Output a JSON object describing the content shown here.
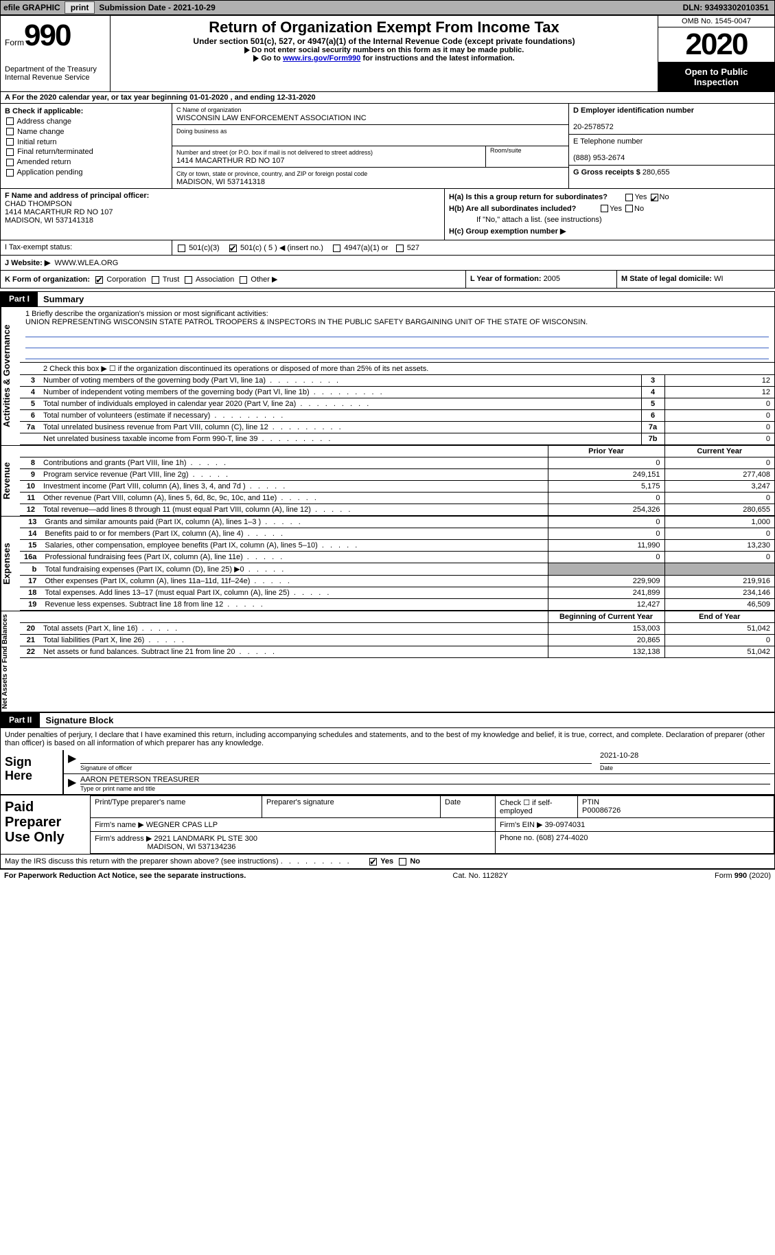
{
  "topbar": {
    "efile": "efile GRAPHIC",
    "print": "print",
    "subdate_label": "Submission Date - ",
    "subdate": "2021-10-29",
    "dln_label": "DLN: ",
    "dln": "93493302010351"
  },
  "header": {
    "form_prefix": "Form",
    "form_no": "990",
    "dept1": "Department of the Treasury",
    "dept2": "Internal Revenue Service",
    "title": "Return of Organization Exempt From Income Tax",
    "subtitle": "Under section 501(c), 527, or 4947(a)(1) of the Internal Revenue Code (except private foundations)",
    "note1": "Do not enter social security numbers on this form as it may be made public.",
    "note2_pre": "Go to ",
    "note2_link": "www.irs.gov/Form990",
    "note2_post": " for instructions and the latest information.",
    "omb": "OMB No. 1545-0047",
    "year": "2020",
    "inspection1": "Open to Public",
    "inspection2": "Inspection"
  },
  "period": {
    "text_pre": "For the 2020 calendar year, or tax year beginning ",
    "begin": "01-01-2020",
    "text_mid": " , and ending ",
    "end": "12-31-2020"
  },
  "colB": {
    "hdr": "B Check if applicable:",
    "opts": [
      "Address change",
      "Name change",
      "Initial return",
      "Final return/terminated",
      "Amended return",
      "Application pending"
    ]
  },
  "colC": {
    "name_lbl": "C Name of organization",
    "name": "WISCONSIN LAW ENFORCEMENT ASSOCIATION INC",
    "dba_lbl": "Doing business as",
    "dba": "",
    "addr_lbl": "Number and street (or P.O. box if mail is not delivered to street address)",
    "room_lbl": "Room/suite",
    "addr": "1414 MACARTHUR RD NO 107",
    "city_lbl": "City or town, state or province, country, and ZIP or foreign postal code",
    "city": "MADISON, WI  537141318"
  },
  "colDE": {
    "d_lbl": "D Employer identification number",
    "d_val": "20-2578572",
    "e_lbl": "E Telephone number",
    "e_val": "(888) 953-2674",
    "g_lbl": "G Gross receipts $ ",
    "g_val": "280,655"
  },
  "colF": {
    "lbl": "F Name and address of principal officer:",
    "name": "CHAD THOMPSON",
    "addr1": "1414 MACARTHUR RD NO 107",
    "addr2": "MADISON, WI  537141318"
  },
  "colH": {
    "ha": "H(a)  Is this a group return for subordinates?",
    "hb": "H(b)  Are all subordinates included?",
    "hb_note": "If \"No,\" attach a list. (see instructions)",
    "hc": "H(c)  Group exemption number ▶",
    "yes": "Yes",
    "no": "No"
  },
  "statusI": {
    "lbl": "I   Tax-exempt status:",
    "o1": "501(c)(3)",
    "o2_pre": "501(c) ( ",
    "o2_num": "5",
    "o2_post": " ) ◀ (insert no.)",
    "o3": "4947(a)(1) or",
    "o4": "527"
  },
  "statusJ": {
    "lbl": "J   Website: ▶",
    "val": "WWW.WLEA.ORG"
  },
  "rowK": {
    "lbl": "K Form of organization:",
    "o1": "Corporation",
    "o2": "Trust",
    "o3": "Association",
    "o4": "Other ▶"
  },
  "rowL": {
    "lbl": "L Year of formation: ",
    "val": "2005"
  },
  "rowM": {
    "lbl": "M State of legal domicile: ",
    "val": "WI"
  },
  "part1": {
    "tab": "Part I",
    "title": "Summary",
    "vlabels": {
      "gov": "Activities & Governance",
      "rev": "Revenue",
      "exp": "Expenses",
      "net": "Net Assets or Fund Balances"
    },
    "line1_lbl": "1  Briefly describe the organization's mission or most significant activities:",
    "line1_val": "UNION REPRESENTING WISCONSIN STATE PATROL TROOPERS & INSPECTORS IN THE PUBLIC SAFETY BARGAINING UNIT OF THE STATE OF WISCONSIN.",
    "line2": "2  Check this box ▶ ☐  if the organization discontinued its operations or disposed of more than 25% of its net assets.",
    "rows_gov": [
      {
        "no": "3",
        "lbl": "Number of voting members of the governing body (Part VI, line 1a)",
        "box": "3",
        "val": "12"
      },
      {
        "no": "4",
        "lbl": "Number of independent voting members of the governing body (Part VI, line 1b)",
        "box": "4",
        "val": "12"
      },
      {
        "no": "5",
        "lbl": "Total number of individuals employed in calendar year 2020 (Part V, line 2a)",
        "box": "5",
        "val": "0"
      },
      {
        "no": "6",
        "lbl": "Total number of volunteers (estimate if necessary)",
        "box": "6",
        "val": "0"
      },
      {
        "no": "7a",
        "lbl": "Total unrelated business revenue from Part VIII, column (C), line 12",
        "box": "7a",
        "val": "0"
      },
      {
        "no": "",
        "lbl": "Net unrelated business taxable income from Form 990-T, line 39",
        "box": "7b",
        "val": "0"
      }
    ],
    "col_prior": "Prior Year",
    "col_curr": "Current Year",
    "rows_rev": [
      {
        "no": "8",
        "lbl": "Contributions and grants (Part VIII, line 1h)",
        "p": "0",
        "c": "0"
      },
      {
        "no": "9",
        "lbl": "Program service revenue (Part VIII, line 2g)",
        "p": "249,151",
        "c": "277,408"
      },
      {
        "no": "10",
        "lbl": "Investment income (Part VIII, column (A), lines 3, 4, and 7d )",
        "p": "5,175",
        "c": "3,247"
      },
      {
        "no": "11",
        "lbl": "Other revenue (Part VIII, column (A), lines 5, 6d, 8c, 9c, 10c, and 11e)",
        "p": "0",
        "c": "0"
      },
      {
        "no": "12",
        "lbl": "Total revenue—add lines 8 through 11 (must equal Part VIII, column (A), line 12)",
        "p": "254,326",
        "c": "280,655"
      }
    ],
    "rows_exp": [
      {
        "no": "13",
        "lbl": "Grants and similar amounts paid (Part IX, column (A), lines 1–3 )",
        "p": "0",
        "c": "1,000"
      },
      {
        "no": "14",
        "lbl": "Benefits paid to or for members (Part IX, column (A), line 4)",
        "p": "0",
        "c": "0"
      },
      {
        "no": "15",
        "lbl": "Salaries, other compensation, employee benefits (Part IX, column (A), lines 5–10)",
        "p": "11,990",
        "c": "13,230"
      },
      {
        "no": "16a",
        "lbl": "Professional fundraising fees (Part IX, column (A), line 11e)",
        "p": "0",
        "c": "0"
      },
      {
        "no": "b",
        "lbl": "Total fundraising expenses (Part IX, column (D), line 25) ▶0",
        "p": "",
        "c": "",
        "grey": true
      },
      {
        "no": "17",
        "lbl": "Other expenses (Part IX, column (A), lines 11a–11d, 11f–24e)",
        "p": "229,909",
        "c": "219,916"
      },
      {
        "no": "18",
        "lbl": "Total expenses. Add lines 13–17 (must equal Part IX, column (A), line 25)",
        "p": "241,899",
        "c": "234,146"
      },
      {
        "no": "19",
        "lbl": "Revenue less expenses. Subtract line 18 from line 12",
        "p": "12,427",
        "c": "46,509"
      }
    ],
    "col_begin": "Beginning of Current Year",
    "col_end": "End of Year",
    "rows_net": [
      {
        "no": "20",
        "lbl": "Total assets (Part X, line 16)",
        "p": "153,003",
        "c": "51,042"
      },
      {
        "no": "21",
        "lbl": "Total liabilities (Part X, line 26)",
        "p": "20,865",
        "c": "0"
      },
      {
        "no": "22",
        "lbl": "Net assets or fund balances. Subtract line 21 from line 20",
        "p": "132,138",
        "c": "51,042"
      }
    ]
  },
  "part2": {
    "tab": "Part II",
    "title": "Signature Block",
    "declaration": "Under penalties of perjury, I declare that I have examined this return, including accompanying schedules and statements, and to the best of my knowledge and belief, it is true, correct, and complete. Declaration of preparer (other than officer) is based on all information of which preparer has any knowledge.",
    "sign_here": "Sign Here",
    "sig_officer_lbl": "Signature of officer",
    "sig_date_lbl": "Date",
    "sig_date": "2021-10-28",
    "name_lbl": "Type or print name and title",
    "name_val": "AARON PETERSON  TREASURER",
    "paid_prep": "Paid Preparer Use Only",
    "pp_name_lbl": "Print/Type preparer's name",
    "pp_sig_lbl": "Preparer's signature",
    "pp_date_lbl": "Date",
    "pp_self_lbl": "Check ☐ if self-employed",
    "pp_ptin_lbl": "PTIN",
    "pp_ptin": "P00086726",
    "firm_name_lbl": "Firm's name    ▶ ",
    "firm_name": "WEGNER CPAS LLP",
    "firm_ein_lbl": "Firm's EIN ▶ ",
    "firm_ein": "39-0974031",
    "firm_addr_lbl": "Firm's address ▶ ",
    "firm_addr1": "2921 LANDMARK PL STE 300",
    "firm_addr2": "MADISON, WI  537134236",
    "phone_lbl": "Phone no. ",
    "phone": "(608) 274-4020",
    "discuss": "May the IRS discuss this return with the preparer shown above? (see instructions)"
  },
  "footer": {
    "left": "For Paperwork Reduction Act Notice, see the separate instructions.",
    "mid": "Cat. No. 11282Y",
    "right": "Form 990 (2020)"
  },
  "colors": {
    "topbar_bg": "#b0b0b0",
    "btn_bg": "#e4e4e4",
    "black": "#000000",
    "link": "#0000cc",
    "ruleline": "#3a62c4",
    "grey_block": "#b0b0b0"
  }
}
